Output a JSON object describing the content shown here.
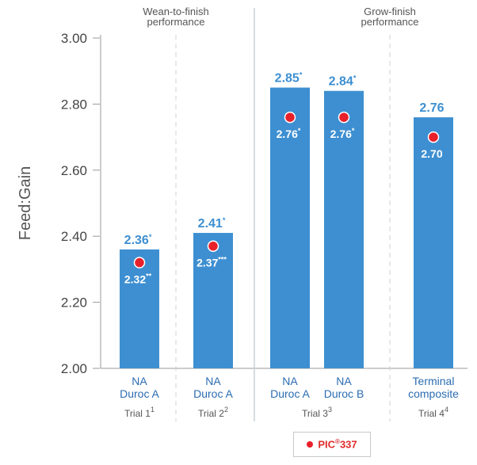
{
  "chart_data": {
    "type": "bar",
    "ylabel": "Feed:Gain",
    "ylim": [
      2.0,
      3.0
    ],
    "yticks": [
      "2.00",
      "2.20",
      "2.40",
      "2.60",
      "2.80",
      "3.00"
    ],
    "groups": [
      {
        "title": [
          "Wean-to-finish",
          "performance"
        ]
      },
      {
        "title": [
          "Grow-finish",
          "performance"
        ]
      }
    ],
    "bars": [
      {
        "label": [
          "NA",
          "Duroc A"
        ],
        "trial": "Trial 1",
        "trial_sup": "1",
        "value": 2.36,
        "value_label": "2.36",
        "value_sup": "*",
        "pic_value": 2.32,
        "pic_label": "2.32",
        "pic_sup": "**"
      },
      {
        "label": [
          "NA",
          "Duroc A"
        ],
        "trial": "Trial 2",
        "trial_sup": "2",
        "value": 2.41,
        "value_label": "2.41",
        "value_sup": "*",
        "pic_value": 2.37,
        "pic_label": "2.37",
        "pic_sup": "***"
      },
      {
        "label": [
          "NA",
          "Duroc A"
        ],
        "trial": "",
        "trial_sup": "",
        "value": 2.85,
        "value_label": "2.85",
        "value_sup": "*",
        "pic_value": 2.76,
        "pic_label": "2.76",
        "pic_sup": "*"
      },
      {
        "label": [
          "NA",
          "Duroc B"
        ],
        "trial": "Trial 3",
        "trial_sup": "3",
        "value": 2.84,
        "value_label": "2.84",
        "value_sup": "*",
        "pic_value": 2.76,
        "pic_label": "2.76",
        "pic_sup": "*"
      },
      {
        "label": [
          "Terminal",
          "composite"
        ],
        "trial": "Trial 4",
        "trial_sup": "4",
        "value": 2.76,
        "value_label": "2.76",
        "value_sup": "",
        "pic_value": 2.7,
        "pic_label": "2.70",
        "pic_sup": ""
      }
    ],
    "legend": {
      "label": "PIC",
      "reg": "®",
      "suffix": "337"
    },
    "colors": {
      "bar": "#3d8fd1",
      "value_text": "#3d8fd1",
      "pic_dot": "#e8202a",
      "axis_text": "#444444",
      "divider": "#c8d0d6"
    }
  }
}
